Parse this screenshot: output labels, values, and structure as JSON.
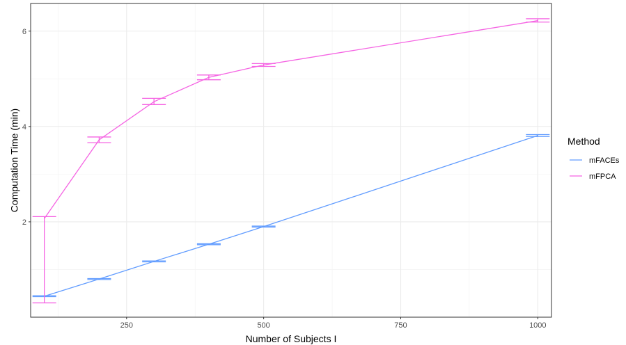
{
  "chart_data": {
    "type": "line",
    "xlabel": "Number of Subjects I",
    "ylabel": "Computation Time (min)",
    "xlim": [
      75,
      1025
    ],
    "ylim": [
      0.0,
      6.58
    ],
    "x_ticks": [
      250,
      500,
      750,
      1000
    ],
    "x_tick_labels": [
      "250",
      "500",
      "750",
      "1000"
    ],
    "y_ticks": [
      2,
      4,
      6
    ],
    "y_tick_labels": [
      "2",
      "4",
      "6"
    ],
    "grid": true,
    "legend": {
      "title": "Method",
      "position": "right"
    },
    "x": [
      100,
      200,
      300,
      400,
      500,
      1000
    ],
    "series": [
      {
        "name": "mFACEs",
        "color": "#619CFF",
        "values": [
          0.44,
          0.8,
          1.17,
          1.53,
          1.9,
          3.81
        ],
        "error_low": [
          0.43,
          0.79,
          1.16,
          1.52,
          1.89,
          3.79
        ],
        "error_high": [
          0.45,
          0.81,
          1.18,
          1.54,
          1.91,
          3.83
        ]
      },
      {
        "name": "mFPCA",
        "color": "#F564E3",
        "values": [
          2.07,
          3.72,
          4.52,
          5.03,
          5.29,
          6.22
        ],
        "error_low": [
          0.3,
          3.66,
          4.46,
          4.98,
          5.26,
          6.19
        ],
        "error_high": [
          2.11,
          3.78,
          4.59,
          5.08,
          5.32,
          6.26
        ]
      }
    ]
  }
}
